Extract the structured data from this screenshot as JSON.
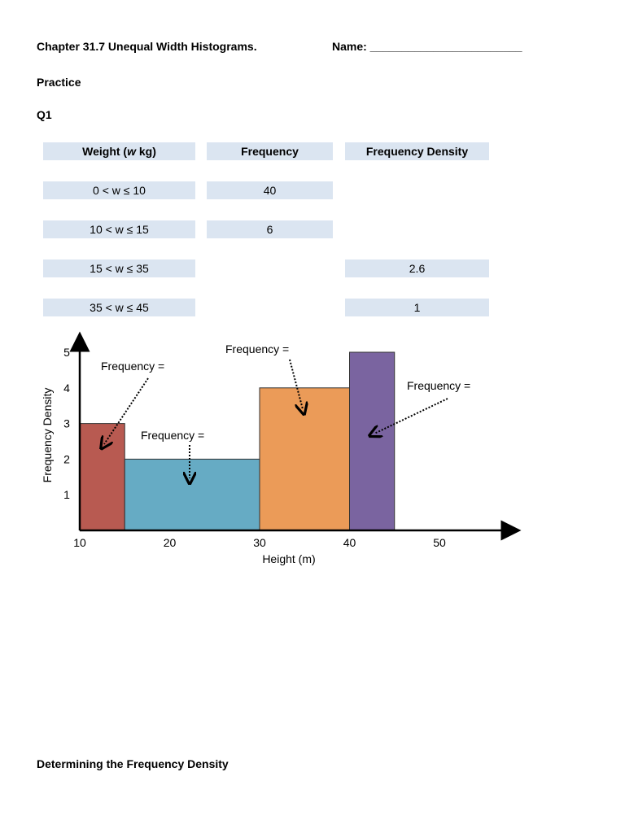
{
  "header": {
    "title": "Chapter 31.7 Unequal Width Histograms.",
    "name_label": "Name: ________________________"
  },
  "section_practice": "Practice",
  "question_label": "Q1",
  "table": {
    "columns": [
      "Weight (w kg)",
      "Frequency",
      "Frequency Density"
    ],
    "rows": [
      {
        "weight": "0 < w ≤ 10",
        "frequency": "40",
        "density": ""
      },
      {
        "weight": "10 < w ≤ 15",
        "frequency": "6",
        "density": ""
      },
      {
        "weight": "15 < w ≤ 35",
        "frequency": "",
        "density": "2.6"
      },
      {
        "weight": "35 < w ≤ 45",
        "frequency": "",
        "density": "1"
      }
    ]
  },
  "chart_data": {
    "type": "bar",
    "xlabel": "Height (m)",
    "ylabel": "Frequency Density",
    "xlim": [
      10,
      55
    ],
    "ylim": [
      0,
      5.2
    ],
    "x_ticks": [
      10,
      20,
      30,
      40,
      50
    ],
    "y_ticks": [
      1,
      2,
      3,
      4,
      5
    ],
    "bars": [
      {
        "x0": 10,
        "x1": 15,
        "value": 3,
        "color": "#b85a51"
      },
      {
        "x0": 15,
        "x1": 30,
        "value": 2,
        "color": "#66abc4"
      },
      {
        "x0": 30,
        "x1": 40,
        "value": 4,
        "color": "#eb9b58"
      },
      {
        "x0": 40,
        "x1": 45,
        "value": 5,
        "color": "#7a64a0"
      }
    ],
    "annotations": [
      "Frequency =",
      "Frequency =",
      "Frequency =",
      "Frequency ="
    ]
  },
  "section_density": "Determining the Frequency Density"
}
